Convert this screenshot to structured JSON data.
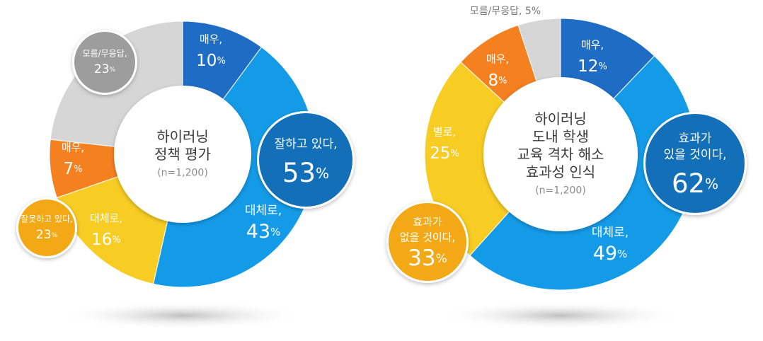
{
  "colors": {
    "very_good": "#1f6cc4",
    "mostly_good": "#149be8",
    "mostly_bad": "#f7cc23",
    "very_bad": "#f48020",
    "unknown": "#d6d6d6",
    "bubble_blue": "#126fb8",
    "bubble_gold": "#f3a916",
    "bubble_gray": "#9d9d9d",
    "center_text": "#3a3a3a",
    "center_sub": "#8a8a8a"
  },
  "chart_data": [
    {
      "type": "pie",
      "center": {
        "line1": "하이러닝",
        "line2": "정책 평가",
        "note": "(n=1,200)"
      },
      "slices": [
        {
          "label": "매우,",
          "value": 10,
          "color": "very_good"
        },
        {
          "label": "대체로,",
          "value": 43,
          "color": "mostly_good"
        },
        {
          "label": "대체로,",
          "value": 16,
          "color": "mostly_bad"
        },
        {
          "label": "매우,",
          "value": 7,
          "color": "very_bad"
        },
        {
          "label": "",
          "value": 23,
          "color": "unknown"
        }
      ],
      "bubbles": [
        {
          "label": "잘하고 있다,",
          "value": 53,
          "color": "bubble_blue"
        },
        {
          "label": "잘못하고 있다,",
          "value": 23,
          "color": "bubble_gold"
        },
        {
          "label": "모름/무응답,",
          "value": 23,
          "color": "bubble_gray"
        }
      ]
    },
    {
      "type": "pie",
      "center": {
        "line1": "하이러닝",
        "line2": "도내 학생",
        "line3": "교육 격차 해소",
        "line4": "효과성 인식",
        "note": "(n=1,200)"
      },
      "slices": [
        {
          "label": "매우,",
          "value": 12,
          "color": "very_good"
        },
        {
          "label": "대체로,",
          "value": 49,
          "color": "mostly_good"
        },
        {
          "label": "별로,",
          "value": 25,
          "color": "mostly_bad"
        },
        {
          "label": "매우,",
          "value": 8,
          "color": "very_bad"
        },
        {
          "label": "모름/무응답, 5%",
          "value": 5,
          "color": "unknown"
        }
      ],
      "bubbles": [
        {
          "label": "효과가",
          "label2": "있을 것이다,",
          "value": 62,
          "color": "bubble_blue"
        },
        {
          "label": "효과가",
          "label2": "없을 것이다,",
          "value": 33,
          "color": "bubble_gold"
        }
      ]
    }
  ]
}
